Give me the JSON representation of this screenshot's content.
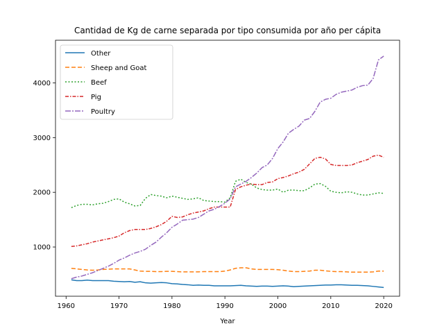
{
  "chart_data": {
    "type": "line",
    "title": "Cantidad de Kg de carne separada por tipo consumida por año per cápita",
    "xlabel": "Year",
    "ylabel": "",
    "xlim": [
      1958,
      2023
    ],
    "ylim": [
      100,
      4780
    ],
    "xticks": [
      1960,
      1970,
      1980,
      1990,
      2000,
      2010,
      2020
    ],
    "yticks": [
      1000,
      2000,
      3000,
      4000
    ],
    "grid": false,
    "legend_position": "top-left",
    "x": [
      1961,
      1962,
      1963,
      1964,
      1965,
      1966,
      1967,
      1968,
      1969,
      1970,
      1971,
      1972,
      1973,
      1974,
      1975,
      1976,
      1977,
      1978,
      1979,
      1980,
      1981,
      1982,
      1983,
      1984,
      1985,
      1986,
      1987,
      1988,
      1989,
      1990,
      1991,
      1992,
      1993,
      1994,
      1995,
      1996,
      1997,
      1998,
      1999,
      2000,
      2001,
      2002,
      2003,
      2004,
      2005,
      2006,
      2007,
      2008,
      2009,
      2010,
      2011,
      2012,
      2013,
      2014,
      2015,
      2016,
      2017,
      2018,
      2019,
      2020
    ],
    "series": [
      {
        "name": "Other",
        "color": "#1f77b4",
        "dash": "solid",
        "values": [
          400,
          385,
          385,
          395,
          385,
          385,
          385,
          385,
          375,
          370,
          365,
          370,
          355,
          365,
          345,
          340,
          345,
          350,
          345,
          330,
          325,
          315,
          310,
          300,
          305,
          300,
          300,
          290,
          290,
          290,
          290,
          295,
          300,
          290,
          285,
          280,
          285,
          285,
          280,
          285,
          290,
          285,
          275,
          280,
          285,
          290,
          295,
          300,
          305,
          305,
          310,
          310,
          305,
          300,
          300,
          295,
          290,
          280,
          270,
          260
        ]
      },
      {
        "name": "Sheep and Goat",
        "color": "#ff7f0e",
        "dash": "6,3",
        "values": [
          610,
          600,
          590,
          580,
          575,
          580,
          590,
          595,
          600,
          600,
          600,
          600,
          580,
          560,
          555,
          555,
          550,
          550,
          555,
          555,
          550,
          545,
          545,
          545,
          545,
          550,
          550,
          550,
          550,
          560,
          580,
          610,
          620,
          620,
          600,
          590,
          590,
          590,
          590,
          585,
          575,
          560,
          550,
          550,
          555,
          560,
          575,
          575,
          565,
          555,
          550,
          550,
          545,
          540,
          540,
          540,
          540,
          545,
          560,
          560
        ]
      },
      {
        "name": "Beef",
        "color": "#2ca02c",
        "dash": "2,2.5",
        "values": [
          1720,
          1760,
          1780,
          1780,
          1770,
          1790,
          1800,
          1830,
          1870,
          1880,
          1820,
          1790,
          1750,
          1760,
          1890,
          1960,
          1940,
          1930,
          1900,
          1930,
          1910,
          1890,
          1870,
          1880,
          1900,
          1850,
          1840,
          1830,
          1830,
          1820,
          1900,
          2200,
          2240,
          2180,
          2150,
          2080,
          2050,
          2040,
          2040,
          2060,
          2000,
          2040,
          2040,
          2030,
          2030,
          2080,
          2150,
          2160,
          2110,
          2020,
          2000,
          1990,
          2010,
          2000,
          1970,
          1950,
          1950,
          1970,
          1990,
          1980
        ]
      },
      {
        "name": "Pig",
        "color": "#d62728",
        "dash": "5,2,1.5,2",
        "values": [
          1010,
          1020,
          1040,
          1060,
          1090,
          1110,
          1130,
          1150,
          1170,
          1200,
          1260,
          1300,
          1320,
          1320,
          1320,
          1340,
          1370,
          1410,
          1470,
          1560,
          1540,
          1550,
          1590,
          1620,
          1640,
          1660,
          1700,
          1730,
          1730,
          1730,
          1730,
          2050,
          2100,
          2130,
          2150,
          2140,
          2140,
          2180,
          2190,
          2250,
          2270,
          2300,
          2340,
          2370,
          2420,
          2520,
          2620,
          2640,
          2610,
          2510,
          2490,
          2490,
          2490,
          2500,
          2540,
          2570,
          2600,
          2660,
          2680,
          2640
        ]
      },
      {
        "name": "Poultry",
        "color": "#9467bd",
        "dash": "8,2,2,2",
        "values": [
          420,
          450,
          470,
          500,
          530,
          570,
          610,
          650,
          700,
          760,
          800,
          850,
          890,
          920,
          960,
          1030,
          1090,
          1180,
          1260,
          1360,
          1420,
          1490,
          1500,
          1510,
          1540,
          1600,
          1660,
          1690,
          1740,
          1800,
          1880,
          2100,
          2150,
          2200,
          2270,
          2350,
          2450,
          2500,
          2620,
          2800,
          2920,
          3080,
          3150,
          3210,
          3320,
          3350,
          3480,
          3650,
          3700,
          3720,
          3790,
          3830,
          3850,
          3870,
          3920,
          3950,
          3960,
          4080,
          4420,
          4490
        ]
      }
    ]
  }
}
